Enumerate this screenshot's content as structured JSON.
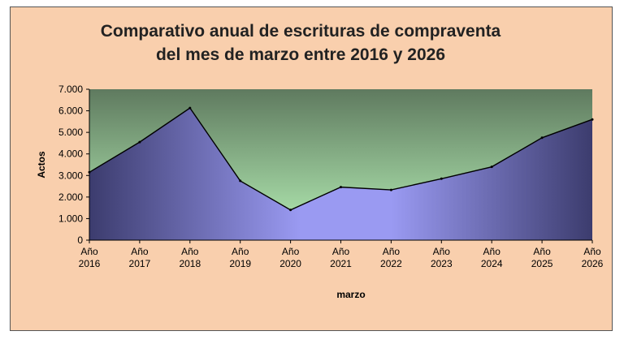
{
  "chart_data": {
    "type": "area",
    "title_line1": "Comparativo anual de escrituras de compraventa",
    "title_line2": "del mes de marzo entre 2016 y 2026",
    "xlabel": "marzo",
    "ylabel": "Actos",
    "categories": [
      {
        "line1": "Año",
        "line2": "2016"
      },
      {
        "line1": "Año",
        "line2": "2017"
      },
      {
        "line1": "Año",
        "line2": "2018"
      },
      {
        "line1": "Año",
        "line2": "2019"
      },
      {
        "line1": "Año",
        "line2": "2020"
      },
      {
        "line1": "Año",
        "line2": "2021"
      },
      {
        "line1": "Año",
        "line2": "2022"
      },
      {
        "line1": "Año",
        "line2": "2023"
      },
      {
        "line1": "Año",
        "line2": "2024"
      },
      {
        "line1": "Año",
        "line2": "2025"
      },
      {
        "line1": "Año",
        "line2": "2026"
      }
    ],
    "values": [
      3150,
      4550,
      6130,
      2750,
      1400,
      2460,
      2330,
      2850,
      3400,
      4750,
      5600
    ],
    "ylim": [
      0,
      7000
    ],
    "ytick_values": [
      0,
      1000,
      2000,
      3000,
      4000,
      5000,
      6000,
      7000
    ],
    "ytick_labels": [
      "0",
      "1.000",
      "2.000",
      "3.000",
      "4.000",
      "5.000",
      "6.000",
      "7.000"
    ],
    "grid": false,
    "legend": "none"
  },
  "colors": {
    "frame_bg": "#f9cfad",
    "plot_bg_top": "#5f7a5f",
    "plot_bg_bottom": "#b6f0b6",
    "area_dark": "#3c3c6e",
    "area_light": "#9a9af2",
    "line": "#000000"
  }
}
